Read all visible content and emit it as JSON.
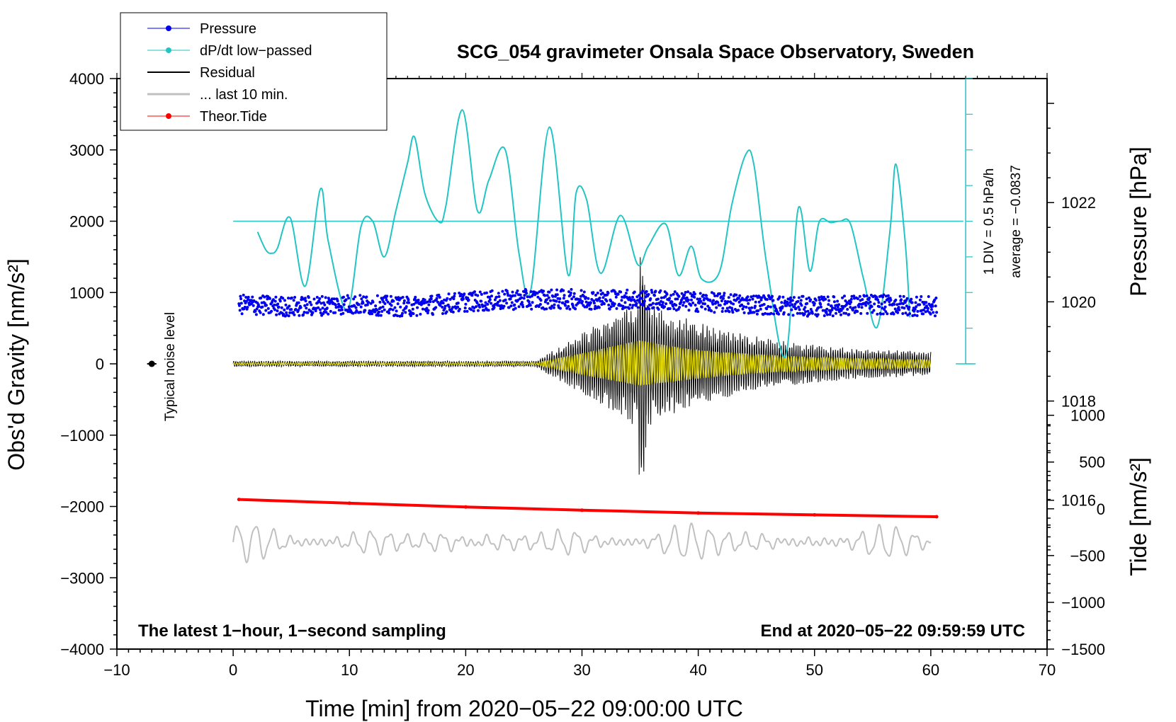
{
  "chart_data": {
    "type": "line",
    "title": "SCG_054 gravimeter Onsala Space Observatory, Sweden",
    "xlabel": "Time [min] from 2020−05−22 09:00:00 UTC",
    "ylabel": "Obs'd Gravity [nm/s²]",
    "ylabel_right_top": "Pressure [hPa]",
    "ylabel_right_bottom": "Tide [nm/s²]",
    "xlim": [
      -10,
      70
    ],
    "ylim": [
      -4000,
      4000
    ],
    "pressure_lim": [
      1013,
      1024.5
    ],
    "tide_lim": [
      -1500,
      4600
    ],
    "x_ticks": [
      "−10",
      "0",
      "10",
      "20",
      "30",
      "40",
      "50",
      "60",
      "70"
    ],
    "y_ticks": [
      "4000",
      "3000",
      "2000",
      "1000",
      "0",
      "−1000",
      "−2000",
      "−3000",
      "−4000"
    ],
    "pressure_ticks": [
      "1022",
      "1020",
      "1018",
      "1016"
    ],
    "tide_ticks": [
      "1000",
      "500",
      "0",
      "−500",
      "−1000",
      "−1500"
    ],
    "legend": {
      "position": "top-left",
      "entries": [
        "Pressure",
        "dP/dt low−passed",
        "Residual",
        "... last 10 min.",
        "Theor.Tide"
      ]
    },
    "annotations": {
      "noise_label": "Typical noise level",
      "left_note": "The latest 1−hour, 1−second sampling",
      "right_note": "End at 2020−05−22 09:59:59 UTC",
      "div_note": "1 DIV = 0.5 hPa/h",
      "average_note": "average = −0.0837"
    },
    "series": [
      {
        "name": "Pressure",
        "axis": "pressure_hPa",
        "x": [
          0.5,
          5,
          10,
          15,
          20,
          25,
          30,
          35,
          40,
          45,
          50,
          55,
          60.5
        ],
        "values": [
          1019.95,
          1019.9,
          1019.95,
          1019.9,
          1020.0,
          1020.05,
          1020.05,
          1020.05,
          1020.0,
          1019.95,
          1019.9,
          1019.95,
          1019.9
        ]
      },
      {
        "name": "dP/dt low-passed",
        "axis": "gravity_nm_s2",
        "x": [
          2.1,
          2.8,
          3.3,
          3.8,
          4.9,
          6.2,
          7.5,
          8.2,
          9.8,
          11.0,
          12.0,
          13.0,
          14.0,
          15.0,
          15.6,
          16.5,
          17.7,
          18.3,
          19.7,
          21.0,
          22.0,
          23.4,
          24.6,
          25.6,
          27.2,
          28.8,
          29.5,
          30.4,
          31.6,
          33.3,
          34.8,
          35.7,
          37.2,
          38.3,
          39.4,
          40.3,
          41.8,
          42.9,
          44.1,
          44.8,
          45.9,
          47.5,
          48.6,
          49.6,
          50.4,
          51.4,
          52.2,
          53.1,
          54.2,
          55.4,
          56.5,
          57.0,
          57.8,
          58.2
        ],
        "values": [
          1850,
          1600,
          1550,
          1620,
          2050,
          1090,
          2450,
          1700,
          750,
          1930,
          2000,
          1500,
          2150,
          2820,
          3180,
          2380,
          1990,
          2220,
          3560,
          2150,
          2580,
          3000,
          1530,
          1040,
          3320,
          1250,
          2400,
          2300,
          1270,
          2080,
          1390,
          1650,
          1960,
          1240,
          1650,
          1190,
          1280,
          2240,
          2940,
          2780,
          1380,
          100,
          2180,
          1300,
          1990,
          1980,
          2000,
          1960,
          1200,
          520,
          1880,
          2800,
          1700,
          650
        ]
      },
      {
        "name": "Residual",
        "axis": "gravity_nm_s2",
        "description_values": "0 ± 60 for 0–26 min; envelope up to ±1750 at 35 min; ±350 by 60 min",
        "x": [
          0,
          10,
          20,
          26,
          30,
          33,
          35,
          37,
          40,
          45,
          50,
          55,
          60
        ],
        "values": [
          0,
          0,
          0,
          0,
          0,
          0,
          0,
          0,
          0,
          0,
          0,
          0,
          0
        ]
      },
      {
        "name": "... last 10 min.",
        "axis": "gravity_nm_s2",
        "x": [
          0,
          10,
          20,
          30,
          40,
          50,
          60
        ],
        "values": [
          -2500,
          -2500,
          -2500,
          -2500,
          -2500,
          -2500,
          -2500
        ]
      },
      {
        "name": "Theor.Tide",
        "axis": "tide_nm_s2",
        "x": [
          0.5,
          10,
          20,
          30,
          40,
          50,
          60.5
        ],
        "values": [
          100,
          60,
          20,
          -15,
          -45,
          -65,
          -85
        ]
      }
    ]
  },
  "colors": {
    "pressure": "#0000ee",
    "dpdt": "#22c4c4",
    "residual": "#000000",
    "last10": "#c0c0c0",
    "tide": "#ff0000",
    "filtered": "#e0d800"
  }
}
